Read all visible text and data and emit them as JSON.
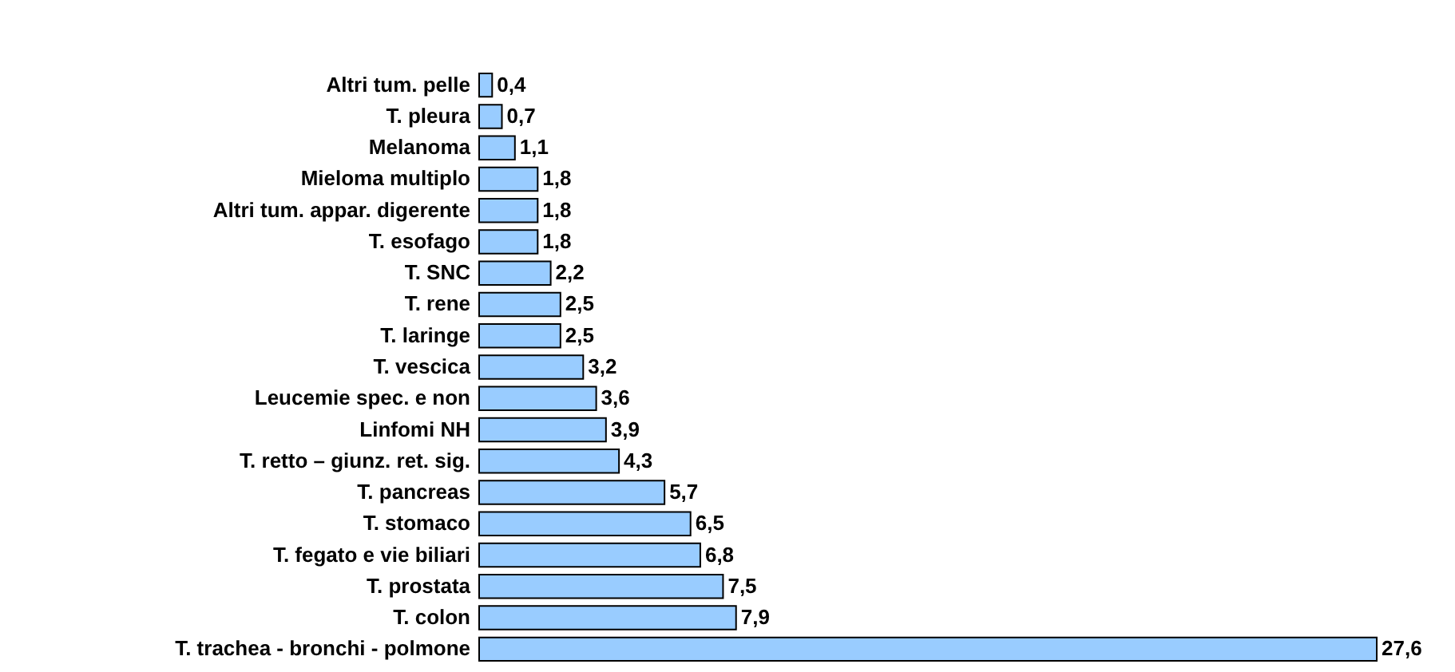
{
  "chart_data": {
    "type": "bar",
    "orientation": "horizontal",
    "categories": [
      "Altri tum. pelle",
      "T. pleura",
      "Melanoma",
      "Mieloma multiplo",
      "Altri tum.  appar. digerente",
      "T. esofago",
      "T. SNC",
      "T. rene",
      "T. laringe",
      "T. vescica",
      "Leucemie spec. e non",
      "Linfomi NH",
      "T. retto – giunz. ret. sig.",
      "T. pancreas",
      "T. stomaco",
      "T. fegato e vie biliari",
      "T. prostata",
      "T. colon",
      "T.  trachea - bronchi - polmone"
    ],
    "values": [
      0.4,
      0.7,
      1.1,
      1.8,
      1.8,
      1.8,
      2.2,
      2.5,
      2.5,
      3.2,
      3.6,
      3.9,
      4.3,
      5.7,
      6.5,
      6.8,
      7.5,
      7.9,
      27.6
    ],
    "value_labels": [
      "0,4",
      "0,7",
      "1,1",
      "1,8",
      "1,8",
      "1,8",
      "2,2",
      "2,5",
      "2,5",
      "3,2",
      "3,6",
      "3,9",
      "4,3",
      "5,7",
      "6,5",
      "6,8",
      "7,5",
      "7,9",
      "27,6"
    ],
    "color": "#99ccff"
  }
}
